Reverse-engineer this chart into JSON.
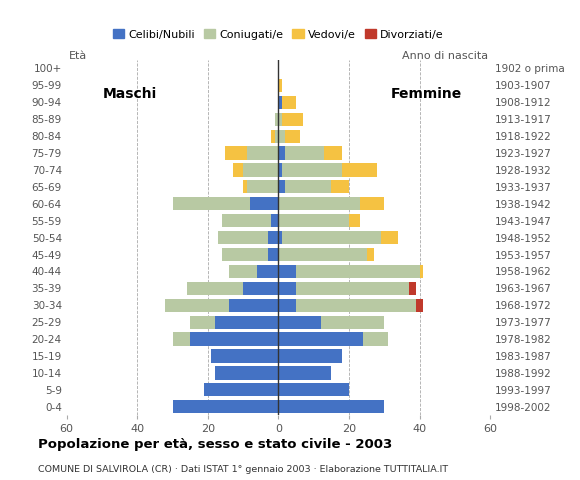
{
  "age_groups": [
    "0-4",
    "5-9",
    "10-14",
    "15-19",
    "20-24",
    "25-29",
    "30-34",
    "35-39",
    "40-44",
    "45-49",
    "50-54",
    "55-59",
    "60-64",
    "65-69",
    "70-74",
    "75-79",
    "80-84",
    "85-89",
    "90-94",
    "95-99",
    "100+"
  ],
  "birth_years": [
    "1998-2002",
    "1993-1997",
    "1988-1992",
    "1983-1987",
    "1978-1982",
    "1973-1977",
    "1968-1972",
    "1963-1967",
    "1958-1962",
    "1953-1957",
    "1948-1952",
    "1943-1947",
    "1938-1942",
    "1933-1937",
    "1928-1932",
    "1923-1927",
    "1918-1922",
    "1913-1917",
    "1908-1912",
    "1903-1907",
    "1902 o prima"
  ],
  "maschi": {
    "celibi": [
      30,
      21,
      18,
      19,
      25,
      18,
      14,
      10,
      6,
      3,
      3,
      2,
      8,
      0,
      0,
      0,
      0,
      0,
      0,
      0,
      0
    ],
    "coniugati": [
      0,
      0,
      0,
      0,
      5,
      7,
      18,
      16,
      8,
      13,
      14,
      14,
      22,
      9,
      10,
      9,
      1,
      1,
      0,
      0,
      0
    ],
    "vedovi": [
      0,
      0,
      0,
      0,
      0,
      0,
      0,
      0,
      0,
      0,
      0,
      0,
      0,
      1,
      3,
      6,
      1,
      0,
      0,
      0,
      0
    ],
    "divorziati": [
      0,
      0,
      0,
      0,
      0,
      0,
      0,
      0,
      0,
      0,
      0,
      0,
      0,
      0,
      0,
      0,
      0,
      0,
      0,
      0,
      0
    ]
  },
  "femmine": {
    "celibi": [
      30,
      20,
      15,
      18,
      24,
      12,
      5,
      5,
      5,
      0,
      1,
      0,
      0,
      2,
      1,
      2,
      0,
      0,
      1,
      0,
      0
    ],
    "coniugati": [
      0,
      0,
      0,
      0,
      7,
      18,
      34,
      32,
      35,
      25,
      28,
      20,
      23,
      13,
      17,
      11,
      2,
      1,
      0,
      0,
      0
    ],
    "vedovi": [
      0,
      0,
      0,
      0,
      0,
      0,
      0,
      0,
      1,
      2,
      5,
      3,
      7,
      5,
      10,
      5,
      4,
      6,
      4,
      1,
      0
    ],
    "divorziati": [
      0,
      0,
      0,
      0,
      0,
      0,
      2,
      2,
      0,
      0,
      0,
      0,
      0,
      0,
      0,
      0,
      0,
      0,
      0,
      0,
      0
    ]
  },
  "colors": {
    "celibi": "#4472c4",
    "coniugati": "#b8c9a3",
    "vedovi": "#f5c242",
    "divorziati": "#c0392b"
  },
  "legend_labels": [
    "Celibi/Nubili",
    "Coniugati/e",
    "Vedovi/e",
    "Divorziati/e"
  ],
  "title": "Popolazione per età, sesso e stato civile - 2003",
  "subtitle": "COMUNE DI SALVIROLA (CR) · Dati ISTAT 1° gennaio 2003 · Elaborazione TUTTITALIA.IT",
  "xlabel_left": "Maschi",
  "xlabel_right": "Femmine",
  "ylabel_left": "Età",
  "ylabel_right": "Anno di nascita",
  "xlim": 60,
  "background_color": "#ffffff",
  "grid_color": "#aaaaaa"
}
